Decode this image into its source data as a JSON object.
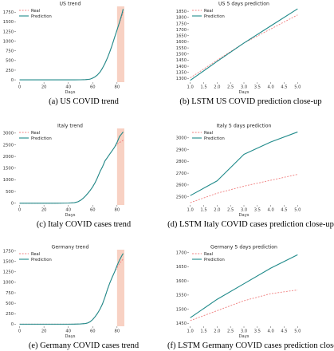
{
  "colors": {
    "real": "#f08080",
    "prediction": "#1f8a8a",
    "highlight": "#f7c9b9",
    "axis": "#555555"
  },
  "captions": [
    "(a) US COVID trend",
    "(b) LSTM US COVID prediction close-up",
    "(c) Italy COVID cases trend",
    "(d) LSTM Italy COVID cases prediction close-up",
    "(e) Germany COVID cases trend",
    "(f) LSTM Germany COVID cases prediction close-up"
  ],
  "chart_data": [
    {
      "type": "line",
      "title": "US trend",
      "xlabel": "Days",
      "ylabel": "",
      "xlim": [
        -3,
        86
      ],
      "ylim": [
        -60,
        1900
      ],
      "xticks": [
        0,
        20,
        40,
        60,
        80
      ],
      "yticks": [
        0,
        250,
        500,
        750,
        1000,
        1250,
        1500,
        1750
      ],
      "legend": "top-left",
      "highlight_x": [
        80,
        86
      ],
      "series": [
        {
          "name": "Real",
          "style": "dashed",
          "x": [
            0,
            10,
            20,
            30,
            40,
            45,
            50,
            54,
            56,
            58,
            60,
            62,
            64,
            66,
            68,
            70,
            72,
            74,
            76,
            78,
            80,
            82,
            84,
            85
          ],
          "y": [
            0,
            0,
            0,
            0,
            0,
            0,
            2,
            5,
            10,
            20,
            45,
            80,
            130,
            200,
            300,
            420,
            560,
            720,
            900,
            1100,
            1290,
            1470,
            1650,
            1750
          ]
        },
        {
          "name": "Prediction",
          "style": "solid",
          "x": [
            0,
            10,
            20,
            30,
            40,
            45,
            50,
            54,
            56,
            58,
            60,
            62,
            64,
            66,
            68,
            70,
            72,
            74,
            76,
            78,
            80,
            82,
            84,
            85
          ],
          "y": [
            0,
            0,
            0,
            0,
            0,
            0,
            2,
            5,
            10,
            20,
            45,
            80,
            130,
            200,
            300,
            420,
            560,
            720,
            900,
            1100,
            1290,
            1490,
            1700,
            1830
          ]
        }
      ]
    },
    {
      "type": "line",
      "title": "US 5 days prediction",
      "xlabel": "Days",
      "ylabel": "",
      "xlim": [
        0.95,
        5.05
      ],
      "ylim": [
        1270,
        1890
      ],
      "xticks": [
        1.0,
        1.5,
        2.0,
        2.5,
        3.0,
        3.5,
        4.0,
        4.5,
        5.0
      ],
      "yticks": [
        1300,
        1350,
        1400,
        1450,
        1500,
        1550,
        1600,
        1650,
        1700,
        1750,
        1800,
        1850
      ],
      "legend": "top-left",
      "series": [
        {
          "name": "Real",
          "style": "dashed",
          "x": [
            1,
            2,
            3,
            4,
            5
          ],
          "y": [
            1305,
            1450,
            1590,
            1705,
            1820
          ]
        },
        {
          "name": "Prediction",
          "style": "solid",
          "x": [
            1,
            2,
            3,
            4,
            5
          ],
          "y": [
            1285,
            1440,
            1590,
            1730,
            1870
          ]
        }
      ]
    },
    {
      "type": "line",
      "title": "Italy trend",
      "xlabel": "Days",
      "ylabel": "",
      "xlim": [
        -3,
        86
      ],
      "ylim": [
        -80,
        3200
      ],
      "xticks": [
        0,
        20,
        40,
        60,
        80
      ],
      "yticks": [
        0,
        500,
        1000,
        1500,
        2000,
        2500,
        3000
      ],
      "legend": "top-left",
      "highlight_x": [
        80,
        86
      ],
      "series": [
        {
          "name": "Real",
          "style": "dashed",
          "x": [
            0,
            10,
            20,
            30,
            40,
            45,
            48,
            50,
            52,
            54,
            56,
            58,
            60,
            62,
            64,
            66,
            68,
            70,
            72,
            74,
            76,
            78,
            80,
            82,
            84,
            85
          ],
          "y": [
            0,
            0,
            0,
            0,
            5,
            20,
            60,
            120,
            200,
            300,
            420,
            550,
            700,
            880,
            1100,
            1350,
            1550,
            1800,
            1950,
            2100,
            2250,
            2400,
            2530,
            2600,
            2650,
            2700
          ]
        },
        {
          "name": "Prediction",
          "style": "solid",
          "x": [
            0,
            10,
            20,
            30,
            40,
            45,
            48,
            50,
            52,
            54,
            56,
            58,
            60,
            62,
            64,
            66,
            68,
            70,
            72,
            74,
            76,
            78,
            80,
            82,
            84,
            85
          ],
          "y": [
            0,
            0,
            0,
            0,
            5,
            20,
            60,
            120,
            200,
            300,
            420,
            550,
            700,
            880,
            1100,
            1350,
            1550,
            1800,
            1950,
            2100,
            2250,
            2400,
            2600,
            2850,
            2980,
            3050
          ]
        }
      ]
    },
    {
      "type": "line",
      "title": "Italy 5 days prediction",
      "xlabel": "Days",
      "ylabel": "",
      "xlim": [
        0.95,
        5.05
      ],
      "ylim": [
        2430,
        3080
      ],
      "xticks": [
        1.0,
        1.5,
        2.0,
        2.5,
        3.0,
        3.5,
        4.0,
        4.5,
        5.0
      ],
      "yticks": [
        2500,
        2600,
        2700,
        2800,
        2900,
        3000
      ],
      "legend": "top-left",
      "series": [
        {
          "name": "Real",
          "style": "dashed",
          "x": [
            1,
            2,
            3,
            4,
            5
          ],
          "y": [
            2450,
            2530,
            2590,
            2640,
            2690
          ]
        },
        {
          "name": "Prediction",
          "style": "solid",
          "x": [
            1,
            2,
            3,
            4,
            5
          ],
          "y": [
            2510,
            2635,
            2860,
            2965,
            3050
          ]
        }
      ]
    },
    {
      "type": "line",
      "title": "Germany trend",
      "xlabel": "Days",
      "ylabel": "",
      "xlim": [
        -3,
        86
      ],
      "ylim": [
        -50,
        1780
      ],
      "xticks": [
        0,
        20,
        40,
        60,
        80
      ],
      "yticks": [
        0,
        250,
        500,
        750,
        1000,
        1250,
        1500,
        1750
      ],
      "legend": "top-left",
      "highlight_x": [
        80,
        86
      ],
      "series": [
        {
          "name": "Real",
          "style": "dashed",
          "x": [
            0,
            10,
            20,
            30,
            40,
            45,
            50,
            54,
            56,
            58,
            60,
            62,
            64,
            66,
            68,
            70,
            72,
            74,
            76,
            78,
            80,
            82,
            84,
            85
          ],
          "y": [
            0,
            0,
            0,
            0,
            0,
            2,
            5,
            15,
            30,
            60,
            110,
            180,
            260,
            360,
            480,
            640,
            820,
            980,
            1120,
            1250,
            1350,
            1450,
            1520,
            1560
          ]
        },
        {
          "name": "Prediction",
          "style": "solid",
          "x": [
            0,
            10,
            20,
            30,
            40,
            45,
            50,
            54,
            56,
            58,
            60,
            62,
            64,
            66,
            68,
            70,
            72,
            74,
            76,
            78,
            80,
            82,
            84,
            85
          ],
          "y": [
            0,
            0,
            0,
            0,
            0,
            2,
            5,
            15,
            30,
            60,
            110,
            180,
            260,
            360,
            480,
            640,
            820,
            980,
            1120,
            1250,
            1400,
            1530,
            1640,
            1690
          ]
        }
      ]
    },
    {
      "type": "line",
      "title": "Germany 5 days prediction",
      "xlabel": "Days",
      "ylabel": "",
      "xlim": [
        0.95,
        5.05
      ],
      "ylim": [
        1440,
        1710
      ],
      "xticks": [
        1.0,
        1.5,
        2.0,
        2.5,
        3.0,
        3.5,
        4.0,
        4.5,
        5.0
      ],
      "yticks": [
        1450,
        1500,
        1550,
        1600,
        1650,
        1700
      ],
      "legend": "top-left",
      "series": [
        {
          "name": "Real",
          "style": "dashed",
          "x": [
            1,
            2,
            3,
            4,
            5
          ],
          "y": [
            1460,
            1495,
            1530,
            1555,
            1568
          ]
        },
        {
          "name": "Prediction",
          "style": "solid",
          "x": [
            1,
            2,
            3,
            4,
            5
          ],
          "y": [
            1470,
            1535,
            1590,
            1645,
            1692
          ]
        }
      ]
    }
  ]
}
